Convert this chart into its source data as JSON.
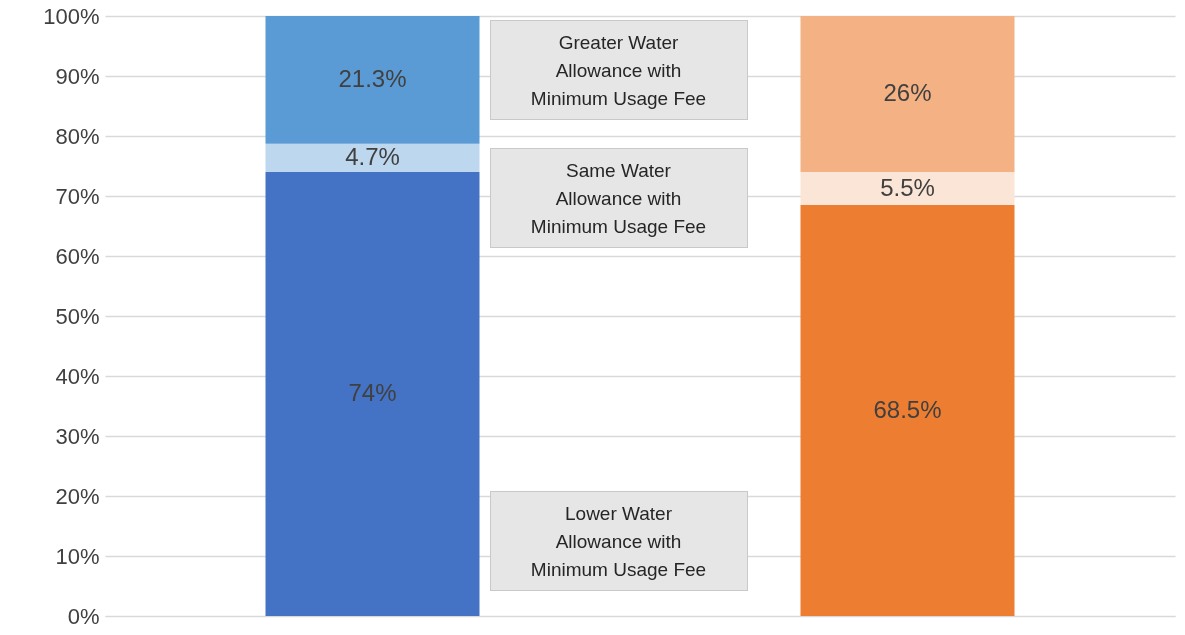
{
  "chart_data": {
    "type": "bar",
    "stacked": true,
    "categories": [
      null,
      null
    ],
    "series": [
      {
        "name": "Lower Water Allowance with Minimum Usage Fee",
        "colors": [
          "#4472c4",
          "#ed7d31"
        ],
        "values": [
          74,
          68.5
        ],
        "value_labels": [
          "74%",
          "68.5%"
        ]
      },
      {
        "name": "Same Water Allowance with Minimum Usage Fee",
        "colors": [
          "#bdd7ee",
          "#fbe5d6"
        ],
        "values": [
          4.7,
          5.5
        ],
        "value_labels": [
          "4.7%",
          "5.5%"
        ]
      },
      {
        "name": "Greater Water Allowance with Minimum Usage Fee",
        "colors": [
          "#5b9bd5",
          "#f4b183"
        ],
        "values": [
          21.3,
          26
        ],
        "value_labels": [
          "21.3%",
          "26%"
        ]
      }
    ],
    "ylim": [
      0,
      100
    ],
    "yticks": [
      {
        "value": 0,
        "label": "0%"
      },
      {
        "value": 10,
        "label": "10%"
      },
      {
        "value": 20,
        "label": "20%"
      },
      {
        "value": 30,
        "label": "30%"
      },
      {
        "value": 40,
        "label": "40%"
      },
      {
        "value": 50,
        "label": "50%"
      },
      {
        "value": 60,
        "label": "60%"
      },
      {
        "value": 70,
        "label": "70%"
      },
      {
        "value": 80,
        "label": "80%"
      },
      {
        "value": 90,
        "label": "90%"
      },
      {
        "value": 100,
        "label": "100%"
      }
    ],
    "grid": true
  }
}
